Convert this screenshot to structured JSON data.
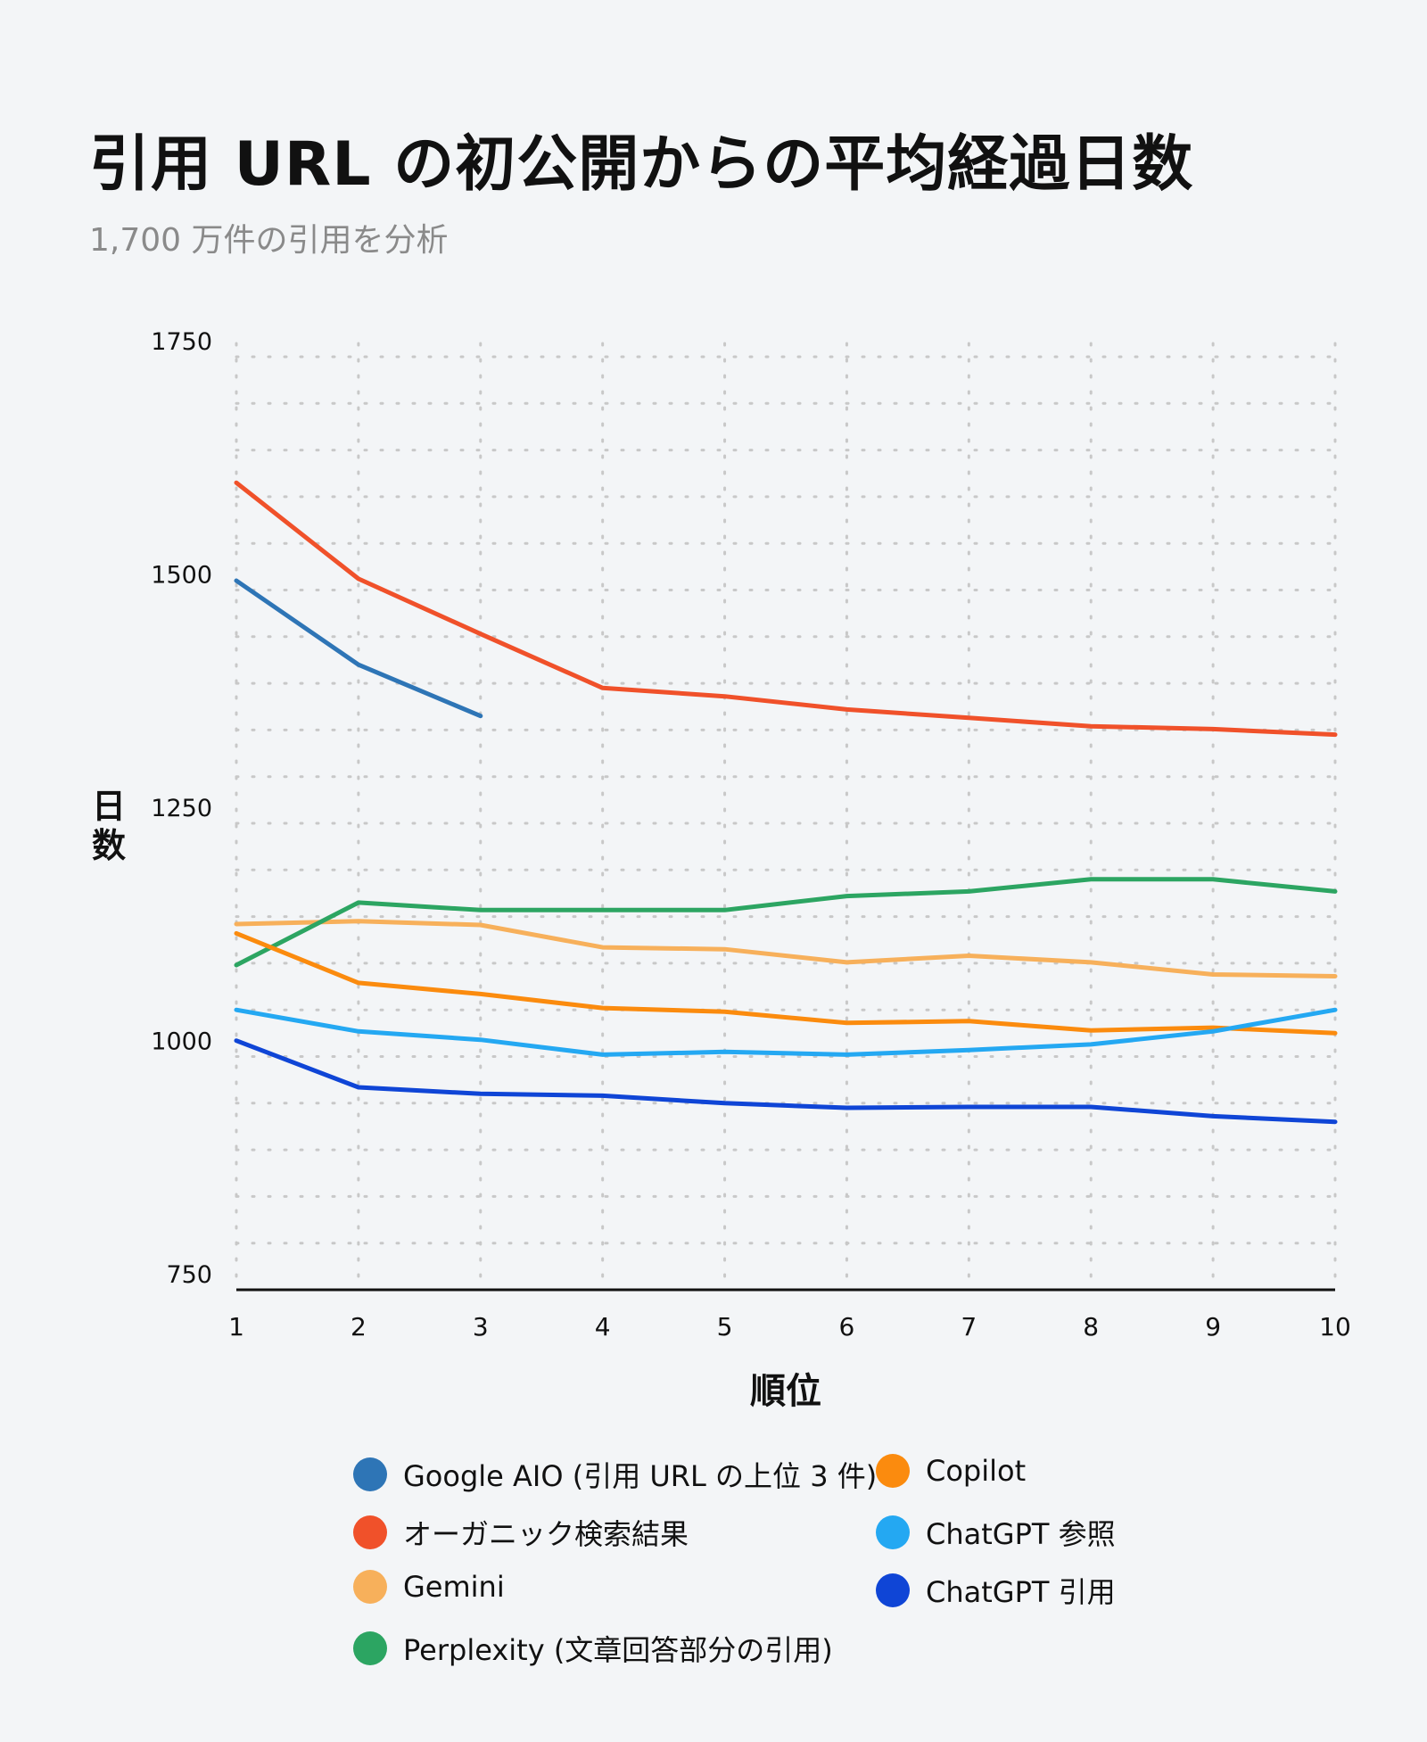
{
  "header": {
    "title": "引用 URL の初公開からの平均経過日数",
    "subtitle": "1,700 万件の引用を分析"
  },
  "chart_data": {
    "type": "line",
    "title": "引用 URL の初公開からの平均経過日数",
    "subtitle": "1,700 万件の引用を分析",
    "xlabel": "順位",
    "ylabel": "日数",
    "x": [
      1,
      2,
      3,
      4,
      5,
      6,
      7,
      8,
      9,
      10
    ],
    "xticks": [
      "1",
      "2",
      "3",
      "4",
      "5",
      "6",
      "7",
      "8",
      "9",
      "10"
    ],
    "ylim": [
      750,
      1750
    ],
    "yticks": [
      "750",
      "1000",
      "1250",
      "1500",
      "1750"
    ],
    "grid": true,
    "legend_position": "bottom",
    "series": [
      {
        "name": "Google AIO (引用 URL の上位 3 件)",
        "color": "#2e75b6",
        "values": [
          1510,
          1420,
          1365,
          null,
          null,
          null,
          null,
          null,
          null,
          null
        ]
      },
      {
        "name": "オーガニック検索結果",
        "color": "#f0512a",
        "values": [
          1615,
          1512,
          1453,
          1395,
          1386,
          1372,
          1363,
          1354,
          1351,
          1345
        ]
      },
      {
        "name": "Gemini",
        "color": "#f7b05b",
        "values": [
          1142,
          1145,
          1141,
          1117,
          1115,
          1101,
          1108,
          1101,
          1088,
          1086
        ]
      },
      {
        "name": "Perplexity (文章回答部分の引用)",
        "color": "#2ca562",
        "values": [
          1098,
          1165,
          1157,
          1157,
          1157,
          1172,
          1177,
          1190,
          1190,
          1177
        ]
      },
      {
        "name": "Copilot",
        "color": "#fb8b0e",
        "values": [
          1132,
          1079,
          1067,
          1052,
          1048,
          1036,
          1038,
          1028,
          1031,
          1025
        ]
      },
      {
        "name": "ChatGPT 参照",
        "color": "#24a8f2",
        "values": [
          1050,
          1027,
          1018,
          1002,
          1005,
          1002,
          1007,
          1013,
          1027,
          1050
        ]
      },
      {
        "name": "ChatGPT 引用",
        "color": "#0f45d6",
        "values": [
          1017,
          967,
          960,
          958,
          950,
          945,
          946,
          946,
          936,
          930
        ]
      }
    ]
  },
  "legend": {
    "items": [
      {
        "label": "Google AIO (引用 URL の上位 3 件)",
        "color": "#2e75b6"
      },
      {
        "label": "オーガニック検索結果",
        "color": "#f0512a"
      },
      {
        "label": "Gemini",
        "color": "#f7b05b"
      },
      {
        "label": "Perplexity (文章回答部分の引用)",
        "color": "#2ca562"
      },
      {
        "label": "Copilot",
        "color": "#fb8b0e"
      },
      {
        "label": "ChatGPT 参照",
        "color": "#24a8f2"
      },
      {
        "label": "ChatGPT 引用",
        "color": "#0f45d6"
      }
    ]
  }
}
